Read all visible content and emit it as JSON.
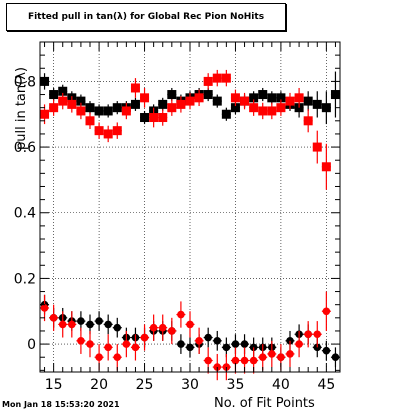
{
  "chart_data": {
    "type": "scatter",
    "title": "Fitted pull in tan(λ) for Global Rec Pion NoHits",
    "xlabel": "No. of Fit Points",
    "ylabel": "pull in tan(λ)",
    "xlim": [
      13.5,
      46.5
    ],
    "ylim": [
      -0.085,
      0.92
    ],
    "xticks": [
      15,
      20,
      25,
      30,
      35,
      40,
      45
    ],
    "yticks": [
      0,
      0.2,
      0.4,
      0.6,
      0.8
    ],
    "grid": true,
    "series": [
      {
        "color": "#000000",
        "marker": "square",
        "x": [
          14,
          15,
          16,
          17,
          18,
          19,
          20,
          21,
          22,
          23,
          24,
          25,
          26,
          27,
          28,
          29,
          30,
          31,
          32,
          33,
          34,
          35,
          36,
          37,
          38,
          39,
          40,
          41,
          42,
          43,
          44,
          45,
          46
        ],
        "y": [
          0.8,
          0.76,
          0.77,
          0.75,
          0.74,
          0.72,
          0.71,
          0.71,
          0.72,
          0.72,
          0.73,
          0.69,
          0.71,
          0.73,
          0.76,
          0.74,
          0.75,
          0.76,
          0.76,
          0.74,
          0.7,
          0.72,
          0.74,
          0.75,
          0.76,
          0.75,
          0.75,
          0.73,
          0.72,
          0.74,
          0.73,
          0.72,
          0.76
        ],
        "yerr": [
          0.025,
          0.02,
          0.02,
          0.02,
          0.02,
          0.02,
          0.02,
          0.02,
          0.02,
          0.02,
          0.02,
          0.02,
          0.02,
          0.02,
          0.02,
          0.02,
          0.02,
          0.02,
          0.02,
          0.02,
          0.02,
          0.02,
          0.02,
          0.02,
          0.02,
          0.02,
          0.02,
          0.02,
          0.03,
          0.03,
          0.04,
          0.05,
          0.07
        ]
      },
      {
        "color": "#ff0000",
        "marker": "square",
        "x": [
          14,
          15,
          16,
          17,
          18,
          19,
          20,
          21,
          22,
          23,
          24,
          25,
          26,
          27,
          28,
          29,
          30,
          31,
          32,
          33,
          34,
          35,
          36,
          37,
          38,
          39,
          40,
          41,
          42,
          43,
          44,
          45
        ],
        "y": [
          0.7,
          0.72,
          0.74,
          0.73,
          0.71,
          0.68,
          0.65,
          0.64,
          0.65,
          0.71,
          0.78,
          0.75,
          0.69,
          0.69,
          0.72,
          0.73,
          0.74,
          0.75,
          0.8,
          0.81,
          0.81,
          0.75,
          0.74,
          0.72,
          0.71,
          0.71,
          0.72,
          0.74,
          0.75,
          0.68,
          0.6,
          0.54
        ],
        "yerr": [
          0.03,
          0.025,
          0.025,
          0.025,
          0.025,
          0.025,
          0.025,
          0.025,
          0.025,
          0.025,
          0.03,
          0.03,
          0.03,
          0.025,
          0.025,
          0.025,
          0.025,
          0.025,
          0.025,
          0.025,
          0.025,
          0.025,
          0.025,
          0.025,
          0.025,
          0.025,
          0.025,
          0.025,
          0.03,
          0.035,
          0.05,
          0.07
        ]
      },
      {
        "color": "#000000",
        "marker": "circle",
        "x": [
          14,
          15,
          16,
          17,
          18,
          19,
          20,
          21,
          22,
          23,
          24,
          25,
          26,
          27,
          28,
          29,
          30,
          31,
          32,
          33,
          34,
          35,
          36,
          37,
          38,
          39,
          40,
          41,
          42,
          43,
          44,
          45,
          46
        ],
        "y": [
          0.12,
          0.08,
          0.08,
          0.07,
          0.07,
          0.06,
          0.07,
          0.06,
          0.05,
          0.02,
          0.02,
          0.02,
          0.04,
          0.04,
          0.04,
          0.0,
          -0.01,
          0.0,
          0.02,
          0.01,
          -0.01,
          0.0,
          0.0,
          -0.01,
          -0.01,
          -0.01,
          -0.04,
          0.01,
          0.03,
          0.03,
          -0.01,
          -0.02,
          -0.04
        ],
        "yerr": [
          0.03,
          0.03,
          0.03,
          0.03,
          0.03,
          0.03,
          0.03,
          0.03,
          0.03,
          0.03,
          0.03,
          0.03,
          0.03,
          0.03,
          0.03,
          0.03,
          0.03,
          0.03,
          0.03,
          0.03,
          0.03,
          0.03,
          0.03,
          0.03,
          0.03,
          0.03,
          0.03,
          0.03,
          0.03,
          0.03,
          0.03,
          0.03,
          0.03
        ]
      },
      {
        "color": "#ff0000",
        "marker": "circle",
        "x": [
          14,
          15,
          16,
          17,
          18,
          19,
          20,
          21,
          22,
          23,
          24,
          25,
          26,
          27,
          28,
          29,
          30,
          31,
          32,
          33,
          34,
          35,
          36,
          37,
          38,
          39,
          40,
          41,
          42,
          43,
          44,
          45
        ],
        "y": [
          0.11,
          0.08,
          0.06,
          0.06,
          0.01,
          0.0,
          -0.04,
          -0.01,
          -0.04,
          0.0,
          -0.01,
          0.02,
          0.05,
          0.05,
          0.04,
          0.09,
          0.06,
          0.01,
          -0.05,
          -0.07,
          -0.07,
          -0.05,
          -0.05,
          -0.05,
          -0.04,
          -0.03,
          -0.04,
          -0.03,
          0.0,
          0.03,
          0.03,
          0.1
        ],
        "yerr": [
          0.04,
          0.04,
          0.04,
          0.04,
          0.04,
          0.04,
          0.04,
          0.04,
          0.04,
          0.04,
          0.04,
          0.04,
          0.04,
          0.04,
          0.04,
          0.04,
          0.04,
          0.04,
          0.04,
          0.04,
          0.04,
          0.04,
          0.04,
          0.04,
          0.04,
          0.04,
          0.04,
          0.04,
          0.04,
          0.04,
          0.04,
          0.06
        ]
      }
    ]
  },
  "timestamp": "Mon Jan 18 15:53:20 2021"
}
